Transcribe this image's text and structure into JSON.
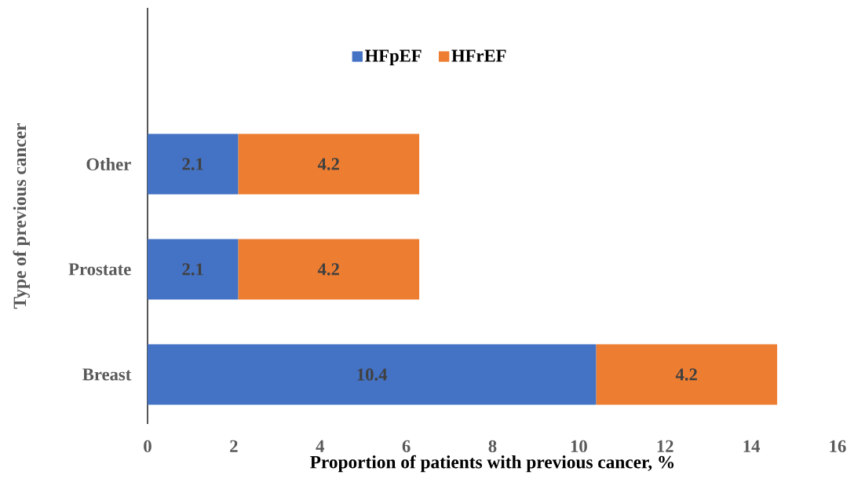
{
  "chart_data": {
    "type": "bar",
    "orientation": "horizontal",
    "stacked": true,
    "xlabel": "Proportion of patients with previous cancer, %",
    "ylabel": "Type of previous cancer",
    "categories": [
      "Other",
      "Prostate",
      "Breast"
    ],
    "series": [
      {
        "name": "HFpEF",
        "color": "#4472c4",
        "values": [
          2.1,
          2.1,
          10.4
        ]
      },
      {
        "name": "HFrEF",
        "color": "#ed7d31",
        "values": [
          4.2,
          4.2,
          4.2
        ]
      }
    ],
    "xlim": [
      0,
      16
    ],
    "xticks": [
      0,
      2,
      4,
      6,
      8,
      10,
      12,
      14,
      16
    ],
    "data_labels": true,
    "legend": "top",
    "grid": false
  }
}
